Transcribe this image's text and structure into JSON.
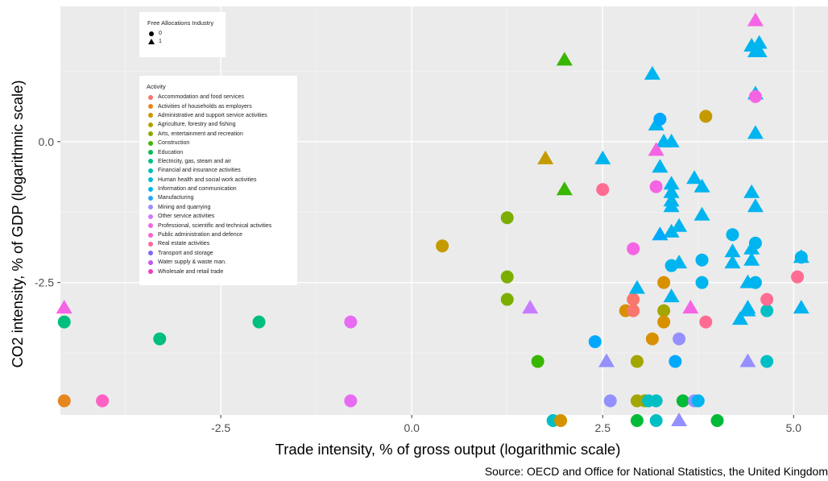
{
  "chart_data": {
    "type": "scatter",
    "title": "",
    "xlabel": "Trade intensity, % of gross output (logarithmic scale)",
    "ylabel": "CO2 intensity, % of GDP (logarithmic scale)",
    "caption": "Source: OECD and Office for National Statistics, the United Kingdom",
    "xlim": [
      -4.6,
      5.45
    ],
    "ylim": [
      -4.85,
      2.4
    ],
    "x_ticks": [
      -2.5,
      0.0,
      2.5,
      5.0
    ],
    "x_tick_labels": [
      "-2.5",
      "0.0",
      "2.5",
      "5.0"
    ],
    "y_ticks": [
      0.0,
      -2.5
    ],
    "y_tick_labels": [
      "0.0",
      "-2.5"
    ],
    "grid": true,
    "background": "#ebebeb",
    "legend_shape": {
      "title": "Free Allocations Industry",
      "entries": [
        {
          "label": "0",
          "shape": "circle"
        },
        {
          "label": "1",
          "shape": "triangle"
        }
      ]
    },
    "legend_color": {
      "title": "Activity",
      "entries": [
        {
          "label": "Accommodation and food services",
          "color": "#F8766D"
        },
        {
          "label": "Activities of households as employers",
          "color": "#E7851E"
        },
        {
          "label": "Administrative and support service activities",
          "color": "#D09400"
        },
        {
          "label": "Agriculture, forestry and fishing",
          "color": "#B2A100"
        },
        {
          "label": "Arts, entertainment and recreation",
          "color": "#89AC00"
        },
        {
          "label": "Construction",
          "color": "#45B500"
        },
        {
          "label": "Education",
          "color": "#00BC51"
        },
        {
          "label": "Electricity, gas, steam and air",
          "color": "#00C087"
        },
        {
          "label": "Financial and insurance activities",
          "color": "#00C0B2"
        },
        {
          "label": "Human health and social work activities",
          "color": "#00BCD6"
        },
        {
          "label": "Information and communication",
          "color": "#00B3F2"
        },
        {
          "label": "Manufacturing",
          "color": "#29A3FF"
        },
        {
          "label": "Mining and quarrying",
          "color": "#9C8DFF"
        },
        {
          "label": "Other service activities",
          "color": "#D277FF"
        },
        {
          "label": "Professional, scientific and technical activities",
          "color": "#F166E8"
        },
        {
          "label": "Public administration and defence",
          "color": "#FF61C7"
        },
        {
          "label": "Real estate activities",
          "color": "#FF689E"
        },
        {
          "label": "Transport and storage",
          "color": "#7F6BF0"
        },
        {
          "label": "Water supply & waste man.",
          "color": "#C658EE"
        },
        {
          "label": "Wholesale and retail trade",
          "color": "#EE3EC2"
        }
      ]
    },
    "points": [
      {
        "x": -4.55,
        "y": -3.2,
        "shape": "circle",
        "color": "#00BF7D"
      },
      {
        "x": -4.55,
        "y": -2.95,
        "shape": "triangle",
        "color": "#F564E3"
      },
      {
        "x": -4.55,
        "y": -4.6,
        "shape": "circle",
        "color": "#E7851E"
      },
      {
        "x": -4.05,
        "y": -4.6,
        "shape": "circle",
        "color": "#FF61C3"
      },
      {
        "x": -3.3,
        "y": -3.5,
        "shape": "circle",
        "color": "#00BF7D"
      },
      {
        "x": -2.0,
        "y": -3.2,
        "shape": "circle",
        "color": "#00BF7D"
      },
      {
        "x": -0.8,
        "y": -3.2,
        "shape": "circle",
        "color": "#E76BF3"
      },
      {
        "x": -0.8,
        "y": -4.6,
        "shape": "circle",
        "color": "#E76BF3"
      },
      {
        "x": 0.4,
        "y": -1.85,
        "shape": "circle",
        "color": "#C49A00"
      },
      {
        "x": 1.25,
        "y": -1.35,
        "shape": "circle",
        "color": "#7CAE00"
      },
      {
        "x": 1.25,
        "y": -2.4,
        "shape": "circle",
        "color": "#7CAE00"
      },
      {
        "x": 1.25,
        "y": -2.8,
        "shape": "circle",
        "color": "#7CAE00"
      },
      {
        "x": 1.55,
        "y": -2.95,
        "shape": "triangle",
        "color": "#C77CFF"
      },
      {
        "x": 1.65,
        "y": -3.9,
        "shape": "circle",
        "color": "#39B600"
      },
      {
        "x": 1.75,
        "y": -0.3,
        "shape": "triangle",
        "color": "#C49A00"
      },
      {
        "x": 2.0,
        "y": 1.45,
        "shape": "triangle",
        "color": "#39B600"
      },
      {
        "x": 2.0,
        "y": -0.85,
        "shape": "triangle",
        "color": "#39B600"
      },
      {
        "x": 1.85,
        "y": -4.95,
        "shape": "circle",
        "color": "#00BFC4"
      },
      {
        "x": 1.95,
        "y": -4.95,
        "shape": "circle",
        "color": "#D39200"
      },
      {
        "x": 2.4,
        "y": -3.55,
        "shape": "circle",
        "color": "#00A9FF"
      },
      {
        "x": 2.5,
        "y": -0.3,
        "shape": "triangle",
        "color": "#00B4EF"
      },
      {
        "x": 2.5,
        "y": -0.85,
        "shape": "circle",
        "color": "#FF6C91"
      },
      {
        "x": 2.55,
        "y": -3.9,
        "shape": "triangle",
        "color": "#9590FF"
      },
      {
        "x": 2.6,
        "y": -4.6,
        "shape": "circle",
        "color": "#9590FF"
      },
      {
        "x": 2.8,
        "y": -3.0,
        "shape": "circle",
        "color": "#D89000"
      },
      {
        "x": 2.9,
        "y": -2.8,
        "shape": "circle",
        "color": "#F8766D"
      },
      {
        "x": 2.9,
        "y": -3.0,
        "shape": "circle",
        "color": "#F8766D"
      },
      {
        "x": 2.9,
        "y": -1.9,
        "shape": "circle",
        "color": "#F564E3"
      },
      {
        "x": 2.95,
        "y": -2.6,
        "shape": "triangle",
        "color": "#00B4EF"
      },
      {
        "x": 2.95,
        "y": -4.95,
        "shape": "circle",
        "color": "#00BA38"
      },
      {
        "x": 2.95,
        "y": -3.9,
        "shape": "circle",
        "color": "#A3A500"
      },
      {
        "x": 2.95,
        "y": -4.6,
        "shape": "circle",
        "color": "#A3A500"
      },
      {
        "x": 3.05,
        "y": -4.6,
        "shape": "circle",
        "color": "#A3A500"
      },
      {
        "x": 3.1,
        "y": -4.6,
        "shape": "circle",
        "color": "#00BFC4"
      },
      {
        "x": 3.2,
        "y": -4.6,
        "shape": "circle",
        "color": "#00BFC4"
      },
      {
        "x": 3.2,
        "y": -4.95,
        "shape": "circle",
        "color": "#00BFC4"
      },
      {
        "x": 3.15,
        "y": 1.2,
        "shape": "triangle",
        "color": "#00B4EF"
      },
      {
        "x": 3.2,
        "y": 0.3,
        "shape": "triangle",
        "color": "#00B4EF"
      },
      {
        "x": 3.25,
        "y": 0.4,
        "shape": "circle",
        "color": "#00A9FF"
      },
      {
        "x": 3.3,
        "y": 0.0,
        "shape": "triangle",
        "color": "#00B4EF"
      },
      {
        "x": 3.2,
        "y": -0.15,
        "shape": "triangle",
        "color": "#F564E3"
      },
      {
        "x": 3.2,
        "y": -0.8,
        "shape": "circle",
        "color": "#F564E3"
      },
      {
        "x": 3.25,
        "y": -0.45,
        "shape": "triangle",
        "color": "#00B4EF"
      },
      {
        "x": 3.4,
        "y": 0.0,
        "shape": "triangle",
        "color": "#00B4EF"
      },
      {
        "x": 3.4,
        "y": -0.75,
        "shape": "triangle",
        "color": "#00B4EF"
      },
      {
        "x": 3.4,
        "y": -0.9,
        "shape": "triangle",
        "color": "#00B4EF"
      },
      {
        "x": 3.4,
        "y": -1.05,
        "shape": "triangle",
        "color": "#00B4EF"
      },
      {
        "x": 3.4,
        "y": -1.15,
        "shape": "triangle",
        "color": "#00B4EF"
      },
      {
        "x": 3.4,
        "y": -1.6,
        "shape": "triangle",
        "color": "#00B4EF"
      },
      {
        "x": 3.25,
        "y": -1.65,
        "shape": "triangle",
        "color": "#00A9FF"
      },
      {
        "x": 3.4,
        "y": -2.2,
        "shape": "circle",
        "color": "#00B4EF"
      },
      {
        "x": 3.5,
        "y": -1.5,
        "shape": "triangle",
        "color": "#00B4EF"
      },
      {
        "x": 3.5,
        "y": -2.15,
        "shape": "triangle",
        "color": "#00B4EF"
      },
      {
        "x": 3.4,
        "y": -2.75,
        "shape": "triangle",
        "color": "#00B4EF"
      },
      {
        "x": 3.3,
        "y": -2.5,
        "shape": "circle",
        "color": "#D89000"
      },
      {
        "x": 3.3,
        "y": -3.0,
        "shape": "circle",
        "color": "#A3A500"
      },
      {
        "x": 3.3,
        "y": -3.2,
        "shape": "circle",
        "color": "#D89000"
      },
      {
        "x": 3.15,
        "y": -3.5,
        "shape": "circle",
        "color": "#D89000"
      },
      {
        "x": 3.5,
        "y": -3.5,
        "shape": "circle",
        "color": "#9590FF"
      },
      {
        "x": 3.45,
        "y": -3.9,
        "shape": "circle",
        "color": "#00A9FF"
      },
      {
        "x": 3.5,
        "y": -4.95,
        "shape": "triangle",
        "color": "#9590FF"
      },
      {
        "x": 3.55,
        "y": -4.6,
        "shape": "circle",
        "color": "#00BA38"
      },
      {
        "x": 3.7,
        "y": -4.6,
        "shape": "circle",
        "color": "#9590FF"
      },
      {
        "x": 3.75,
        "y": -4.6,
        "shape": "circle",
        "color": "#00B4EF"
      },
      {
        "x": 3.65,
        "y": -2.95,
        "shape": "triangle",
        "color": "#F564E3"
      },
      {
        "x": 3.7,
        "y": -0.65,
        "shape": "triangle",
        "color": "#00B4EF"
      },
      {
        "x": 3.8,
        "y": -0.8,
        "shape": "triangle",
        "color": "#00B4EF"
      },
      {
        "x": 3.8,
        "y": -1.3,
        "shape": "triangle",
        "color": "#00B4EF"
      },
      {
        "x": 3.8,
        "y": -2.1,
        "shape": "circle",
        "color": "#00B4EF"
      },
      {
        "x": 3.8,
        "y": -2.5,
        "shape": "circle",
        "color": "#00B4EF"
      },
      {
        "x": 3.85,
        "y": 0.45,
        "shape": "circle",
        "color": "#C49A00"
      },
      {
        "x": 3.85,
        "y": -3.2,
        "shape": "circle",
        "color": "#FF6C91"
      },
      {
        "x": 4.0,
        "y": -4.95,
        "shape": "circle",
        "color": "#00BA38"
      },
      {
        "x": 4.2,
        "y": -1.65,
        "shape": "circle",
        "color": "#00B4EF"
      },
      {
        "x": 4.2,
        "y": -1.95,
        "shape": "triangle",
        "color": "#00B4EF"
      },
      {
        "x": 4.2,
        "y": -2.15,
        "shape": "triangle",
        "color": "#00B4EF"
      },
      {
        "x": 4.3,
        "y": -3.15,
        "shape": "triangle",
        "color": "#00B4EF"
      },
      {
        "x": 4.4,
        "y": -2.5,
        "shape": "triangle",
        "color": "#00B4EF"
      },
      {
        "x": 4.4,
        "y": -2.95,
        "shape": "triangle",
        "color": "#00B4EF"
      },
      {
        "x": 4.4,
        "y": -3.0,
        "shape": "triangle",
        "color": "#00B4EF"
      },
      {
        "x": 4.45,
        "y": -0.9,
        "shape": "triangle",
        "color": "#00B4EF"
      },
      {
        "x": 4.45,
        "y": -1.9,
        "shape": "triangle",
        "color": "#00B4EF"
      },
      {
        "x": 4.45,
        "y": -2.1,
        "shape": "triangle",
        "color": "#00B4EF"
      },
      {
        "x": 4.45,
        "y": 1.7,
        "shape": "triangle",
        "color": "#00B4EF"
      },
      {
        "x": 4.5,
        "y": 1.6,
        "shape": "triangle",
        "color": "#00B4EF"
      },
      {
        "x": 4.55,
        "y": 1.75,
        "shape": "triangle",
        "color": "#00B4EF"
      },
      {
        "x": 4.55,
        "y": 1.6,
        "shape": "triangle",
        "color": "#00B4EF"
      },
      {
        "x": 4.5,
        "y": 2.15,
        "shape": "triangle",
        "color": "#F564E3"
      },
      {
        "x": 4.5,
        "y": 0.85,
        "shape": "triangle",
        "color": "#00B4EF"
      },
      {
        "x": 4.5,
        "y": 0.8,
        "shape": "circle",
        "color": "#F564E3"
      },
      {
        "x": 4.5,
        "y": 0.15,
        "shape": "triangle",
        "color": "#00B4EF"
      },
      {
        "x": 4.5,
        "y": -1.15,
        "shape": "triangle",
        "color": "#00B4EF"
      },
      {
        "x": 4.5,
        "y": -1.8,
        "shape": "circle",
        "color": "#00B4EF"
      },
      {
        "x": 4.5,
        "y": -2.5,
        "shape": "circle",
        "color": "#00B4EF"
      },
      {
        "x": 4.4,
        "y": -3.9,
        "shape": "triangle",
        "color": "#9590FF"
      },
      {
        "x": 4.65,
        "y": -3.0,
        "shape": "circle",
        "color": "#00BFC4"
      },
      {
        "x": 4.65,
        "y": -3.9,
        "shape": "circle",
        "color": "#00BFC4"
      },
      {
        "x": 4.65,
        "y": -2.8,
        "shape": "circle",
        "color": "#FF6C91"
      },
      {
        "x": 5.05,
        "y": -2.4,
        "shape": "circle",
        "color": "#FF6C91"
      },
      {
        "x": 5.1,
        "y": -2.05,
        "shape": "triangle",
        "color": "#00B4EF"
      },
      {
        "x": 5.1,
        "y": -2.05,
        "shape": "circle",
        "color": "#00B4EF"
      },
      {
        "x": 5.1,
        "y": -2.95,
        "shape": "triangle",
        "color": "#00B4EF"
      }
    ]
  }
}
